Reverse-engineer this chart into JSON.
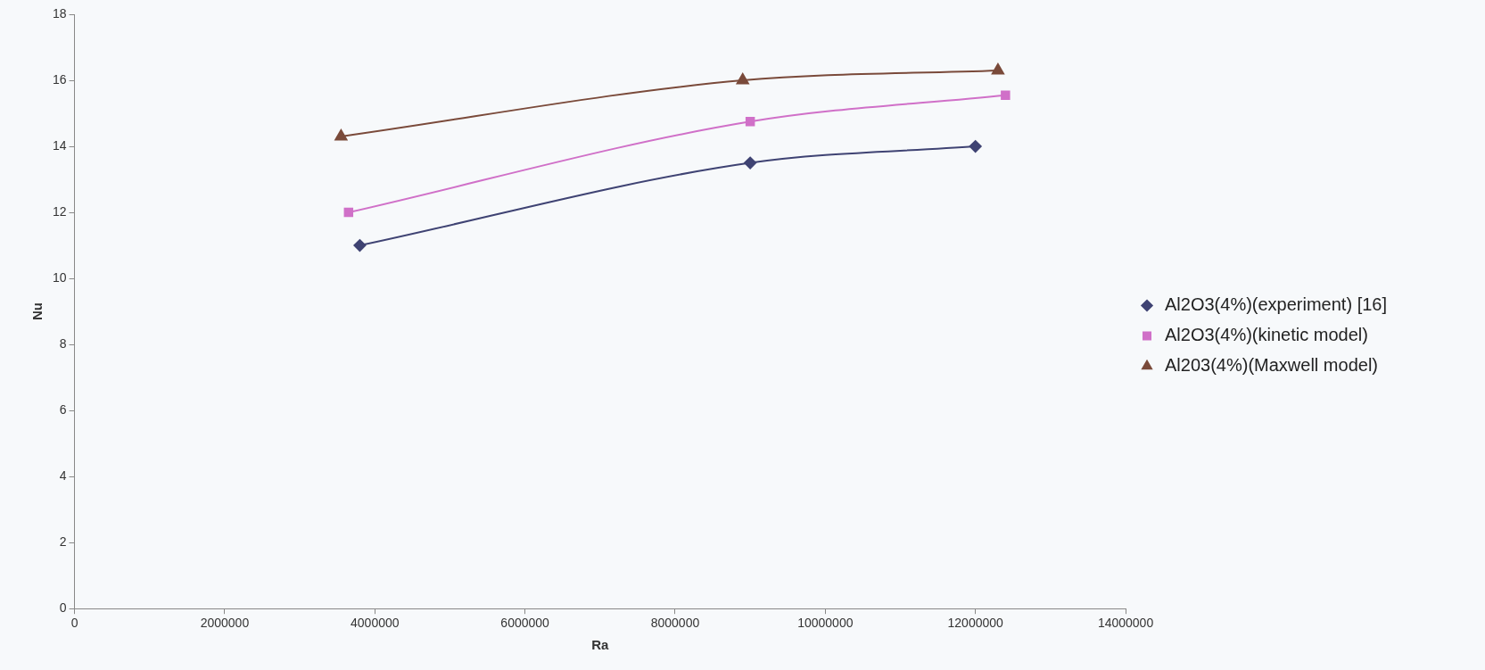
{
  "chart_data": {
    "type": "line",
    "xlabel": "Ra",
    "ylabel": "Nu",
    "xlim": [
      0,
      14000000
    ],
    "xticks": [
      0,
      2000000,
      4000000,
      6000000,
      8000000,
      10000000,
      12000000,
      14000000
    ],
    "ylim": [
      0,
      18
    ],
    "yticks": [
      0,
      2,
      4,
      6,
      8,
      10,
      12,
      14,
      16,
      18
    ],
    "grid": false,
    "legend": "right",
    "series": [
      {
        "name": "Al2O3(4%)(experiment) [16]",
        "color": "#3f4373",
        "marker": "diamond",
        "x": [
          3800000,
          9000000,
          12000000
        ],
        "values": [
          11,
          13.5,
          14
        ]
      },
      {
        "name": "Al2O3(4%)(kinetic model)",
        "color": "#d070c8",
        "marker": "square",
        "x": [
          3650000,
          9000000,
          12400000
        ],
        "values": [
          12,
          14.75,
          15.55
        ]
      },
      {
        "name": "Al203(4%)(Maxwell model)",
        "color": "#7a4a3a",
        "marker": "triangle",
        "x": [
          3550000,
          8900000,
          12300000
        ],
        "values": [
          14.3,
          16,
          16.3
        ]
      }
    ]
  }
}
